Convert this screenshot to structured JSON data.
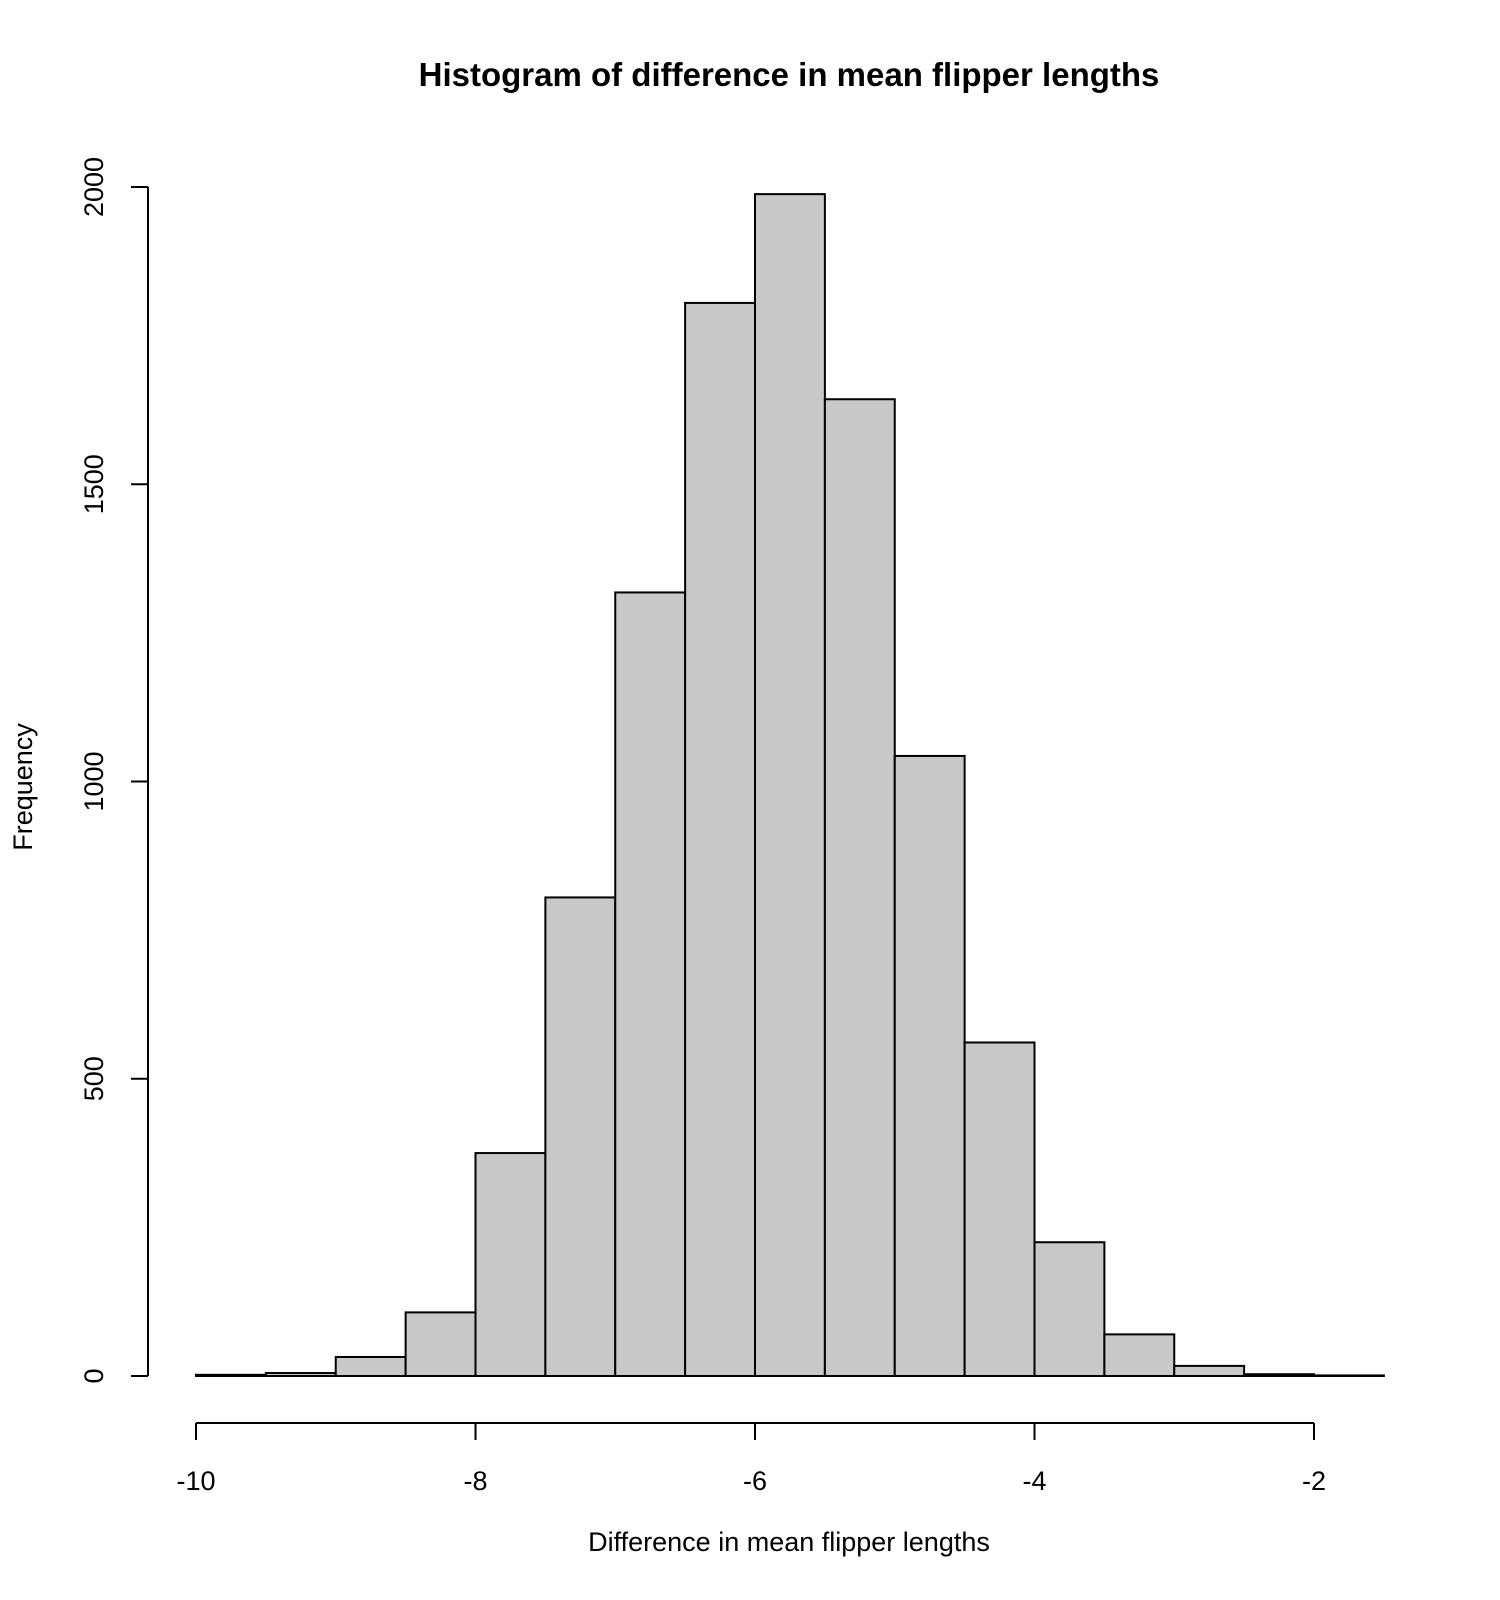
{
  "chart_data": {
    "type": "bar",
    "title": "Histogram of difference in mean flipper lengths",
    "xlabel": "Difference in mean flipper lengths",
    "ylabel": "Frequency",
    "xlim": [
      -10,
      -1.5
    ],
    "ylim": [
      0,
      2000
    ],
    "x_ticks": [
      -10,
      -8,
      -6,
      -4,
      -2
    ],
    "y_ticks": [
      0,
      500,
      1000,
      1500,
      2000
    ],
    "bins": [
      {
        "start": -10.0,
        "end": -9.5,
        "count": 2
      },
      {
        "start": -9.5,
        "end": -9.0,
        "count": 5
      },
      {
        "start": -9.0,
        "end": -8.5,
        "count": 32
      },
      {
        "start": -8.5,
        "end": -8.0,
        "count": 107
      },
      {
        "start": -8.0,
        "end": -7.5,
        "count": 375
      },
      {
        "start": -7.5,
        "end": -7.0,
        "count": 805
      },
      {
        "start": -7.0,
        "end": -6.5,
        "count": 1318
      },
      {
        "start": -6.5,
        "end": -6.0,
        "count": 1805
      },
      {
        "start": -6.0,
        "end": -5.5,
        "count": 1988
      },
      {
        "start": -5.5,
        "end": -5.0,
        "count": 1643
      },
      {
        "start": -5.0,
        "end": -4.5,
        "count": 1043
      },
      {
        "start": -4.5,
        "end": -4.0,
        "count": 561
      },
      {
        "start": -4.0,
        "end": -3.5,
        "count": 225
      },
      {
        "start": -3.5,
        "end": -3.0,
        "count": 70
      },
      {
        "start": -3.0,
        "end": -2.5,
        "count": 17
      },
      {
        "start": -2.5,
        "end": -2.0,
        "count": 3
      },
      {
        "start": -2.0,
        "end": -1.5,
        "count": 1
      }
    ],
    "bar_color": "#c8c8c8",
    "grid": false
  }
}
